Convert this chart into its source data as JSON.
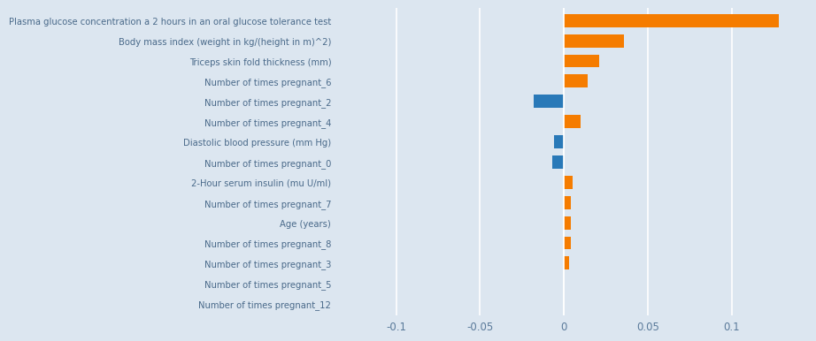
{
  "categories": [
    "Plasma glucose concentration a 2 hours in an oral glucose tolerance test",
    "Body mass index (weight in kg/(height in m)^2)",
    "Triceps skin fold thickness (mm)",
    "Number of times pregnant_6",
    "Number of times pregnant_2",
    "Number of times pregnant_4",
    "Diastolic blood pressure (mm Hg)",
    "Number of times pregnant_0",
    "2-Hour serum insulin (mu U/ml)",
    "Number of times pregnant_7",
    "Age (years)",
    "Number of times pregnant_8",
    "Number of times pregnant_3",
    "Number of times pregnant_5",
    "Number of times pregnant_12"
  ],
  "values": [
    0.128,
    0.036,
    0.021,
    0.014,
    -0.018,
    0.01,
    -0.006,
    -0.007,
    0.005,
    0.004,
    0.004,
    0.004,
    0.003,
    0.0,
    0.0
  ],
  "colors": [
    "#f57c00",
    "#f57c00",
    "#f57c00",
    "#f57c00",
    "#2979b8",
    "#f57c00",
    "#2979b8",
    "#2979b8",
    "#f57c00",
    "#f57c00",
    "#f57c00",
    "#f57c00",
    "#f57c00",
    "#f57c00",
    "#f57c00"
  ],
  "background_color": "#dce6f0",
  "text_color": "#4a6a8a",
  "tick_color": "#5a7a9a",
  "xlim": [
    -0.135,
    0.145
  ],
  "xticks": [
    -0.1,
    -0.05,
    0.0,
    0.05,
    0.1
  ],
  "xtick_labels": [
    "-0.1",
    "-0.05",
    "0",
    "0.05",
    "0.1"
  ],
  "bar_height": 0.65
}
